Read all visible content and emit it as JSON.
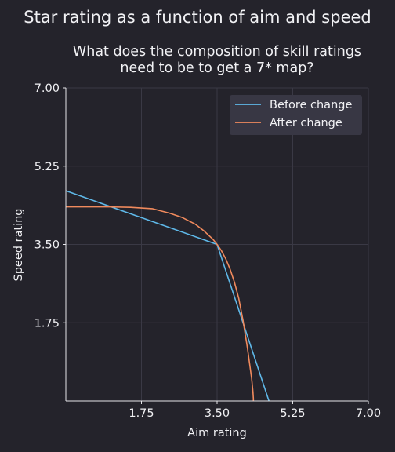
{
  "chart_data": {
    "type": "line",
    "suptitle": "Star rating as a function of aim and speed",
    "title_line1": "What does the composition of skill ratings",
    "title_line2": "need to be to get a 7* map?",
    "xlabel": "Aim rating",
    "ylabel": "Speed rating",
    "xlim": [
      0,
      7.0
    ],
    "ylim": [
      0,
      7.0
    ],
    "xticks": [
      1.75,
      3.5,
      5.25,
      7.0
    ],
    "xtick_labels": [
      "1.75",
      "3.50",
      "5.25",
      "7.00"
    ],
    "yticks": [
      1.75,
      3.5,
      5.25,
      7.0
    ],
    "ytick_labels": [
      "1.75",
      "3.50",
      "5.25",
      "7.00"
    ],
    "grid": true,
    "legend_position": "top-right",
    "series": [
      {
        "name": "Before change",
        "color": "#5fb8e8",
        "x": [
          0,
          3.5,
          4.7
        ],
        "y": [
          4.7,
          3.5,
          0
        ]
      },
      {
        "name": "After change",
        "color": "#f08a5d",
        "x": [
          0,
          1.0,
          1.5,
          2.0,
          2.4,
          2.7,
          3.0,
          3.2,
          3.4,
          3.5,
          3.6,
          3.7,
          3.8,
          3.9,
          4.0,
          4.1,
          4.2,
          4.3,
          4.33,
          4.34,
          4.34
        ],
        "y": [
          4.34,
          4.34,
          4.33,
          4.3,
          4.2,
          4.1,
          3.95,
          3.8,
          3.62,
          3.5,
          3.36,
          3.18,
          2.95,
          2.66,
          2.3,
          1.8,
          1.2,
          0.5,
          0.2,
          0.05,
          0
        ]
      }
    ]
  }
}
